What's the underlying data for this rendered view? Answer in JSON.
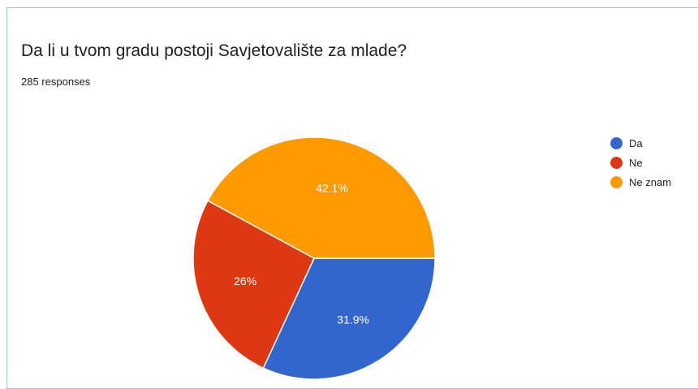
{
  "question": {
    "title": "Da li u tvom gradu postoji Savjetovalište za mlade?",
    "responses": "285 responses"
  },
  "chart_data": {
    "type": "pie",
    "slices": [
      {
        "label": "Da",
        "value": 31.9,
        "display": "31.9%",
        "color": "#3366cc"
      },
      {
        "label": "Ne",
        "value": 26,
        "display": "26%",
        "color": "#dc3912"
      },
      {
        "label": "Ne znam",
        "value": 42.1,
        "display": "42.1%",
        "color": "#ff9900"
      }
    ],
    "legend_position": "right",
    "label_color": "#ffffff"
  }
}
